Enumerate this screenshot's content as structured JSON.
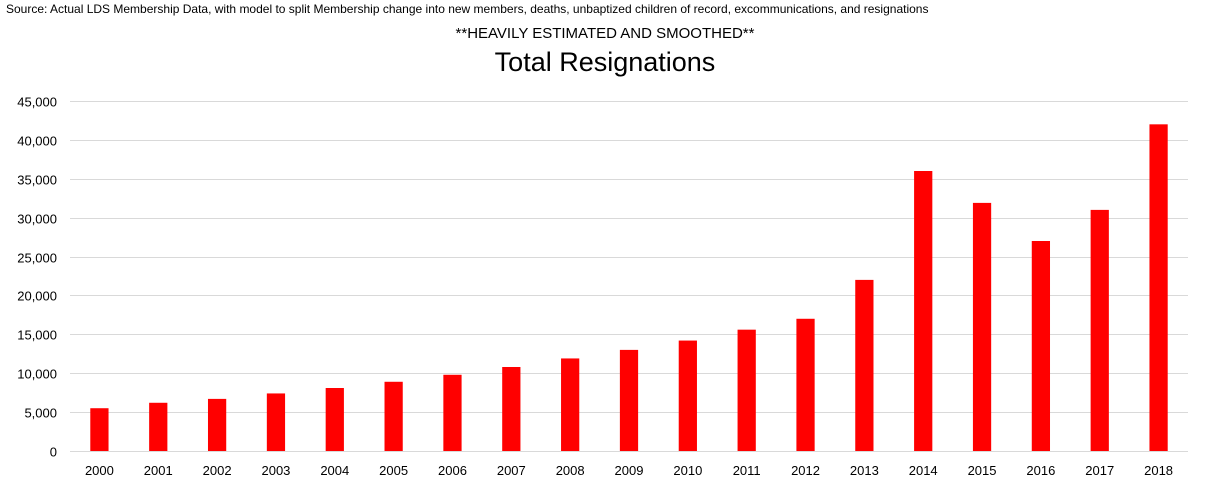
{
  "chart_data": {
    "type": "bar",
    "source": "Source: Actual LDS Membership Data, with model to split Membership change into new members, deaths, unbaptized children of record, excommunications, and resignations",
    "subtitle": "**HEAVILY ESTIMATED AND SMOOTHED**",
    "title": "Total Resignations",
    "categories": [
      "2000",
      "2001",
      "2002",
      "2003",
      "2004",
      "2005",
      "2006",
      "2007",
      "2008",
      "2009",
      "2010",
      "2011",
      "2012",
      "2013",
      "2014",
      "2015",
      "2016",
      "2017",
      "2018"
    ],
    "values": [
      5500,
      6200,
      6700,
      7400,
      8100,
      8900,
      9800,
      10800,
      11900,
      13000,
      14200,
      15600,
      17000,
      22000,
      36000,
      31900,
      27000,
      31000,
      42000
    ],
    "ylim": [
      0,
      45000
    ],
    "yticks": [
      0,
      5000,
      10000,
      15000,
      20000,
      25000,
      30000,
      35000,
      40000,
      45000
    ],
    "ytick_labels": [
      "0",
      "5,000",
      "10,000",
      "15,000",
      "20,000",
      "25,000",
      "30,000",
      "35,000",
      "40,000",
      "45,000"
    ],
    "grid": true,
    "bar_color": "#ff0000",
    "grid_color": "#d9d9d9"
  }
}
